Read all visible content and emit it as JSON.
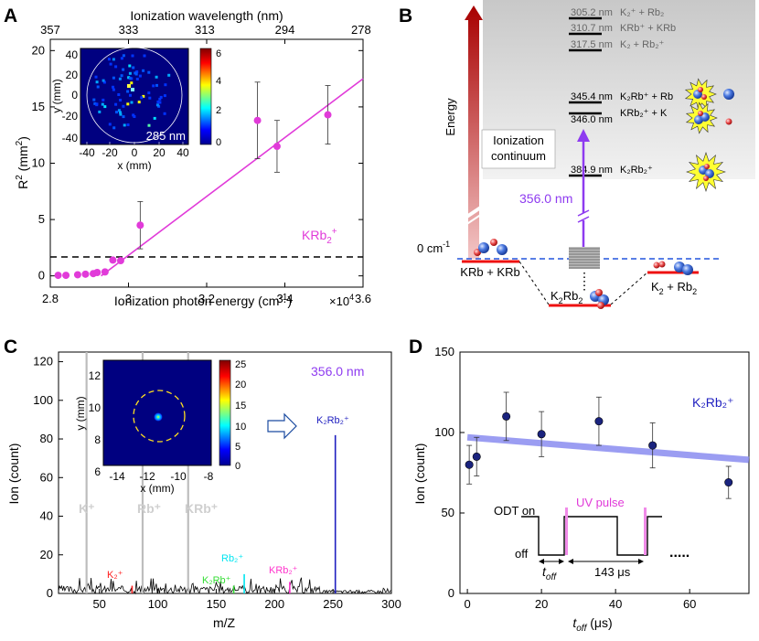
{
  "panels": {
    "A": {
      "letter": "A",
      "top_axis_title": "Ionization wavelength (nm)",
      "top_ticks": [
        "357",
        "333",
        "313",
        "294",
        "278"
      ],
      "bottom_ticks": [
        "2.8",
        "3",
        "3.2",
        "3.4",
        "3.6"
      ],
      "xlabel": "Ionization photon energy (cm",
      "xlabel_sup": "-1",
      "xlabel_end": ")",
      "x_multiplier": "×10",
      "x_multiplier_exp": "4",
      "ylabel": "R",
      "ylabel_sup": "2",
      "ylabel_unit": " (mm",
      "ylabel_unit_sup": "2",
      "ylabel_end": ")",
      "y_ticks": [
        "0",
        "5",
        "10",
        "15",
        "20"
      ],
      "species": "KRb",
      "species_sub": "2",
      "species_sup": "+",
      "inset": {
        "xlabel": "x (mm)",
        "ylabel": "y (mm)",
        "x_ticks": [
          "-40",
          "-20",
          "0",
          "20",
          "40"
        ],
        "y_ticks": [
          "40",
          "20",
          "0",
          "-20",
          "-40"
        ],
        "wavelength_label": "285 nm",
        "colorbar_ticks": [
          "6",
          "4",
          "2",
          "0"
        ]
      }
    },
    "B": {
      "letter": "B",
      "energy_label": "Energy",
      "continuum_line1": "Ionization",
      "continuum_line2": "continuum",
      "zero_label": "0 cm",
      "zero_sup": "-1",
      "laser_label": "356.0 nm",
      "reactant_label": "KRb + KRb",
      "complex_label": "K",
      "complex_label_sub1": "2",
      "complex_label_mid": "Rb",
      "complex_label_sub2": "2",
      "product_label": "K",
      "product_sub": "2",
      "product_mid": " + Rb",
      "product_sub2": "2",
      "levels": [
        {
          "nm": "305.2 nm",
          "species": "K₂⁺ + Rb₂"
        },
        {
          "nm": "310.7 nm",
          "species": "KRb⁺ + KRb"
        },
        {
          "nm": "317.5 nm",
          "species": "K₂ + Rb₂⁺"
        },
        {
          "nm": "345.4 nm",
          "species": "K₂Rb⁺ + Rb"
        },
        {
          "nm": "346.0 nm",
          "species": "KRb₂⁺ + K"
        },
        {
          "nm": "384.9 nm",
          "species": "K₂Rb₂⁺"
        }
      ]
    },
    "C": {
      "letter": "C",
      "wavelength_label": "356.0 nm",
      "xlabel": "m/Z",
      "ylabel": "Ion (count)",
      "x_ticks": [
        "50",
        "100",
        "150",
        "200",
        "250",
        "300"
      ],
      "y_ticks": [
        "0",
        "20",
        "40",
        "60",
        "80",
        "100",
        "120"
      ],
      "gray_peaks": [
        "K⁺",
        "Rb⁺",
        "KRb⁺"
      ],
      "peak_labels": {
        "k2": "K₂⁺",
        "k2rb": "K₂Rb⁺",
        "rb2": "Rb₂⁺",
        "krb2": "KRb₂⁺",
        "k2rb2": "K₂Rb₂⁺"
      },
      "inset": {
        "xlabel": "x (mm)",
        "ylabel": "y (mm)",
        "x_ticks": [
          "-14",
          "-12",
          "-10",
          "-8"
        ],
        "y_ticks": [
          "12",
          "10",
          "8",
          "6"
        ],
        "colorbar_ticks": [
          "25",
          "20",
          "15",
          "10",
          "5",
          "0"
        ]
      }
    },
    "D": {
      "letter": "D",
      "species": "K₂Rb₂⁺",
      "xlabel": "t",
      "xlabel_sub": "off",
      "xlabel_unit": " (μs)",
      "ylabel": "Ion (count)",
      "x_ticks": [
        "0",
        "20",
        "40",
        "60"
      ],
      "y_ticks": [
        "0",
        "50",
        "100",
        "150"
      ],
      "odt_on": "ODT on",
      "odt_off": "off",
      "uv_pulse": "UV pulse",
      "t_off": "t",
      "t_off_sub": "off",
      "period": "143 μs",
      "ellipsis": "....."
    }
  },
  "chart_data": [
    {
      "type": "scatter",
      "panel": "A",
      "xlabel": "Ionization photon energy (cm-1) ×10^4",
      "ylabel": "R^2 (mm^2)",
      "xlim": [
        2.8,
        3.6
      ],
      "ylim": [
        -1,
        21
      ],
      "x": [
        2.82,
        2.84,
        2.87,
        2.89,
        2.91,
        2.92,
        2.94,
        2.96,
        2.98,
        3.03,
        3.33,
        3.38,
        3.51
      ],
      "y": [
        0.05,
        0.05,
        0.1,
        0.15,
        0.2,
        0.3,
        0.35,
        1.4,
        1.35,
        4.5,
        13.8,
        11.5,
        14.3
      ],
      "err": [
        0,
        0,
        0,
        0,
        0,
        0,
        0,
        0,
        0,
        2.1,
        3.4,
        2.3,
        2.6
      ],
      "fit": {
        "x": [
          2.93,
          3.6
        ],
        "y": [
          0,
          17.5
        ]
      },
      "color": "#e13bd9"
    },
    {
      "type": "bar",
      "panel": "C",
      "xlabel": "m/Z",
      "ylabel": "Ion (count)",
      "xlim": [
        15,
        300
      ],
      "ylim": [
        0,
        125
      ],
      "peaks": [
        {
          "label": "K⁺",
          "x": 39,
          "y": 125,
          "color": "#bdbdbd"
        },
        {
          "label": "Rb⁺",
          "x": 87,
          "y": 125,
          "color": "#bdbdbd"
        },
        {
          "label": "KRb⁺",
          "x": 126,
          "y": 125,
          "color": "#bdbdbd"
        },
        {
          "label": "K₂⁺",
          "x": 78,
          "y": 4,
          "color": "#ff2020"
        },
        {
          "label": "K₂Rb⁺",
          "x": 165,
          "y": 4,
          "color": "#33dd33"
        },
        {
          "label": "Rb₂⁺",
          "x": 174,
          "y": 10,
          "color": "#00e5f0"
        },
        {
          "label": "KRb₂⁺",
          "x": 213,
          "y": 6,
          "color": "#ff33cc"
        },
        {
          "label": "K₂Rb₂⁺",
          "x": 252,
          "y": 82,
          "color": "#2020c0"
        }
      ]
    },
    {
      "type": "scatter",
      "panel": "D",
      "xlabel": "t_off (μs)",
      "ylabel": "Ion (count)",
      "xlim": [
        -2,
        76
      ],
      "ylim": [
        0,
        150
      ],
      "x": [
        0.5,
        2.5,
        10.5,
        20,
        35.5,
        50,
        70.5
      ],
      "y": [
        80,
        85,
        110,
        99,
        107,
        92,
        69
      ],
      "err": [
        12,
        12,
        15,
        14,
        15,
        14,
        10
      ],
      "fit": {
        "x": [
          0,
          76
        ],
        "y": [
          97,
          83
        ]
      },
      "color": "#1a237e"
    }
  ]
}
